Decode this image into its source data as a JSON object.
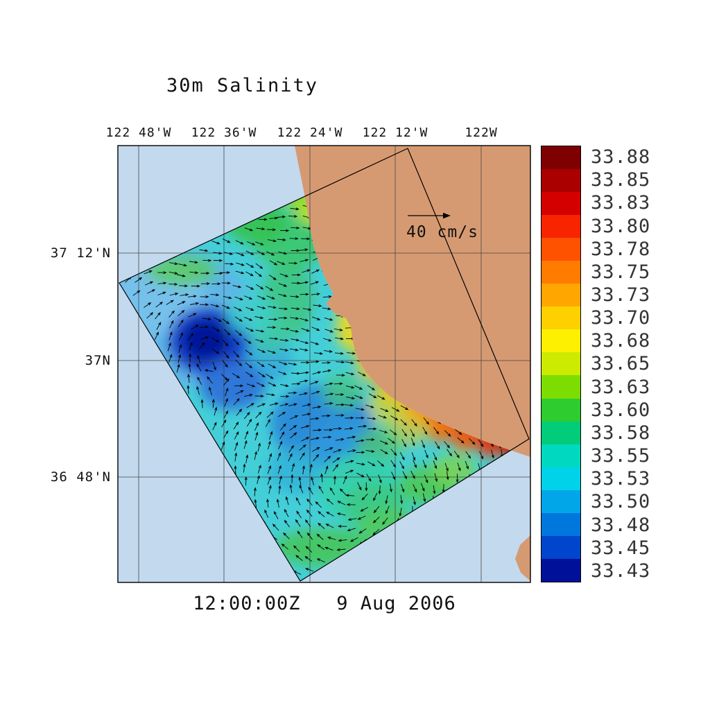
{
  "figure": {
    "title": "30m Salinity",
    "timestamp": "12:00:00Z   9 Aug 2006"
  },
  "velocity_scale": {
    "label": "40 cm/s"
  },
  "axes": {
    "top": [
      "122 48'W",
      "122 36'W",
      "122 24'W",
      "122 12'W",
      "122W"
    ],
    "left": [
      "37 12'N",
      "37N",
      "36 48'N"
    ]
  },
  "colorbar": {
    "labels": [
      "33.88",
      "33.85",
      "33.83",
      "33.80",
      "33.78",
      "33.75",
      "33.73",
      "33.70",
      "33.68",
      "33.65",
      "33.63",
      "33.60",
      "33.58",
      "33.55",
      "33.53",
      "33.50",
      "33.48",
      "33.45",
      "33.43"
    ],
    "colors": [
      "#7f0000",
      "#aa0000",
      "#d40000",
      "#f82400",
      "#ff5200",
      "#ff7c00",
      "#ffa600",
      "#ffd000",
      "#fdf000",
      "#cdeb00",
      "#7edd00",
      "#2ecc2e",
      "#00cc7a",
      "#00d9c0",
      "#00d2ea",
      "#00a6e8",
      "#0077dd",
      "#0046cc",
      "#001099"
    ]
  },
  "map": {
    "ocean_color": "#c3d9ee",
    "land_color": "#d69a72",
    "field_base_color": "#44cfd8",
    "vector_color": "#000000",
    "grid_color": "#444444"
  },
  "chart_data": {
    "type": "heatmap",
    "title": "30m Salinity",
    "x_ticks": [
      "122 48'W",
      "122 36'W",
      "122 24'W",
      "122 12'W",
      "122W"
    ],
    "y_ticks": [
      "37 12'N",
      "37N",
      "36 48'N"
    ],
    "levels": [
      33.43,
      33.45,
      33.48,
      33.5,
      33.53,
      33.55,
      33.58,
      33.6,
      33.63,
      33.65,
      33.68,
      33.7,
      33.73,
      33.75,
      33.78,
      33.8,
      33.83,
      33.85,
      33.88
    ],
    "vector_scale_label": "40 cm/s",
    "valid_time": "12:00:00Z   9 Aug 2006",
    "legend_position": "right"
  }
}
